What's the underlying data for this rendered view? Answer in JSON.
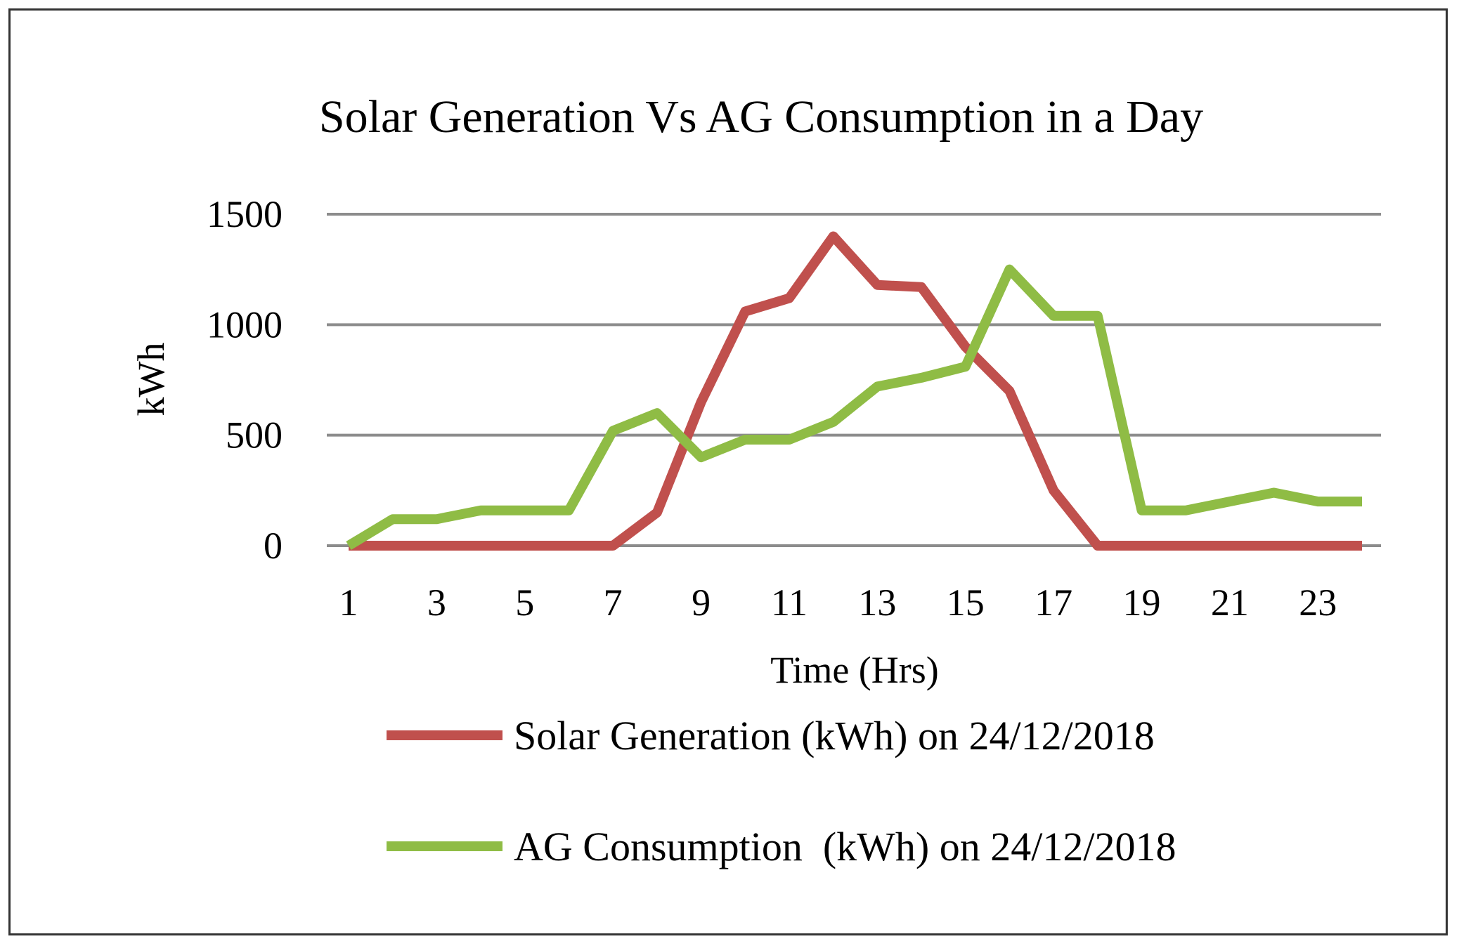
{
  "chart_data": {
    "type": "line",
    "title": "Solar Generation Vs AG Consumption in a Day",
    "xlabel": "Time (Hrs)",
    "ylabel": "kWh",
    "x": [
      1,
      2,
      3,
      4,
      5,
      6,
      7,
      8,
      9,
      10,
      11,
      12,
      13,
      14,
      15,
      16,
      17,
      18,
      19,
      20,
      21,
      22,
      23,
      24
    ],
    "x_tick_labels": [
      "1",
      "3",
      "5",
      "7",
      "9",
      "11",
      "13",
      "15",
      "17",
      "19",
      "21",
      "23"
    ],
    "y_ticks": [
      0,
      500,
      1000,
      1500
    ],
    "ylim": [
      0,
      1500
    ],
    "grid": true,
    "legend_position": "bottom",
    "series": [
      {
        "name": "Solar Generation (kWh) on 24/12/2018",
        "color": "#c0504d",
        "values": [
          0,
          0,
          0,
          0,
          0,
          0,
          0,
          150,
          650,
          1060,
          1120,
          1400,
          1180,
          1170,
          900,
          700,
          250,
          0,
          0,
          0,
          0,
          0,
          0,
          0
        ]
      },
      {
        "name": "AG Consumption  (kWh) on 24/12/2018",
        "color": "#8fbc45",
        "values": [
          0,
          120,
          120,
          160,
          160,
          160,
          520,
          600,
          400,
          480,
          480,
          560,
          720,
          760,
          810,
          1250,
          1040,
          1040,
          160,
          160,
          200,
          240,
          200,
          200
        ]
      }
    ]
  }
}
